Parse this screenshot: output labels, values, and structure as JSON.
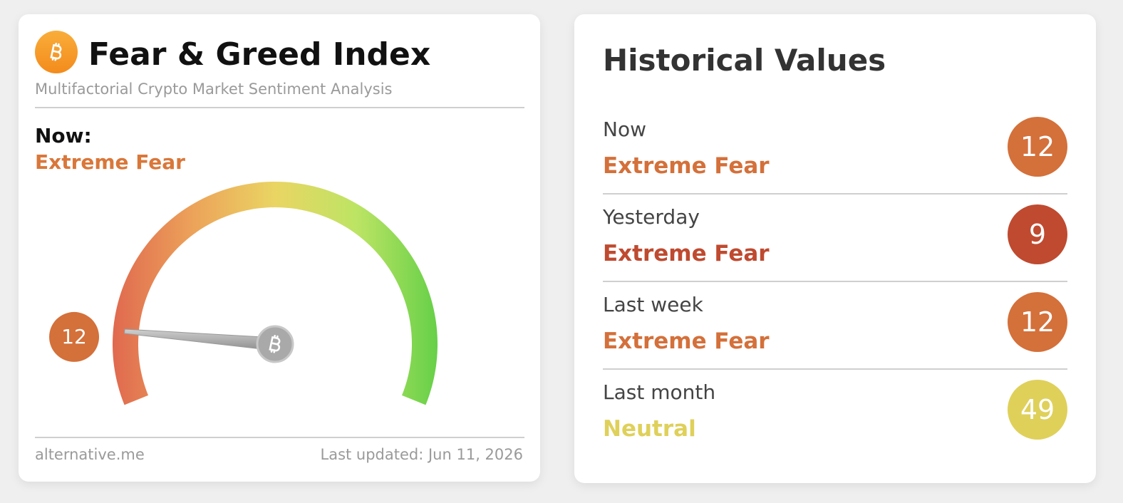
{
  "header": {
    "title": "Fear & Greed Index",
    "subtitle": "Multifactorial Crypto Market Sentiment Analysis"
  },
  "now": {
    "label": "Now:",
    "classification": "Extreme Fear",
    "color": "#d9773a"
  },
  "gauge": {
    "value": 12,
    "range": [
      0,
      100
    ],
    "color": "#d4703a"
  },
  "footer": {
    "source": "alternative.me",
    "updated": "Last updated: Jun 11, 2026"
  },
  "historical": {
    "title": "Historical Values",
    "rows": [
      {
        "label": "Now",
        "classification": "Extreme Fear",
        "value": 12,
        "color": "#d4703a"
      },
      {
        "label": "Yesterday",
        "classification": "Extreme Fear",
        "value": 9,
        "color": "#bf4a30"
      },
      {
        "label": "Last week",
        "classification": "Extreme Fear",
        "value": 12,
        "color": "#d4703a"
      },
      {
        "label": "Last month",
        "classification": "Neutral",
        "value": 49,
        "color": "#dfd05a"
      }
    ]
  }
}
